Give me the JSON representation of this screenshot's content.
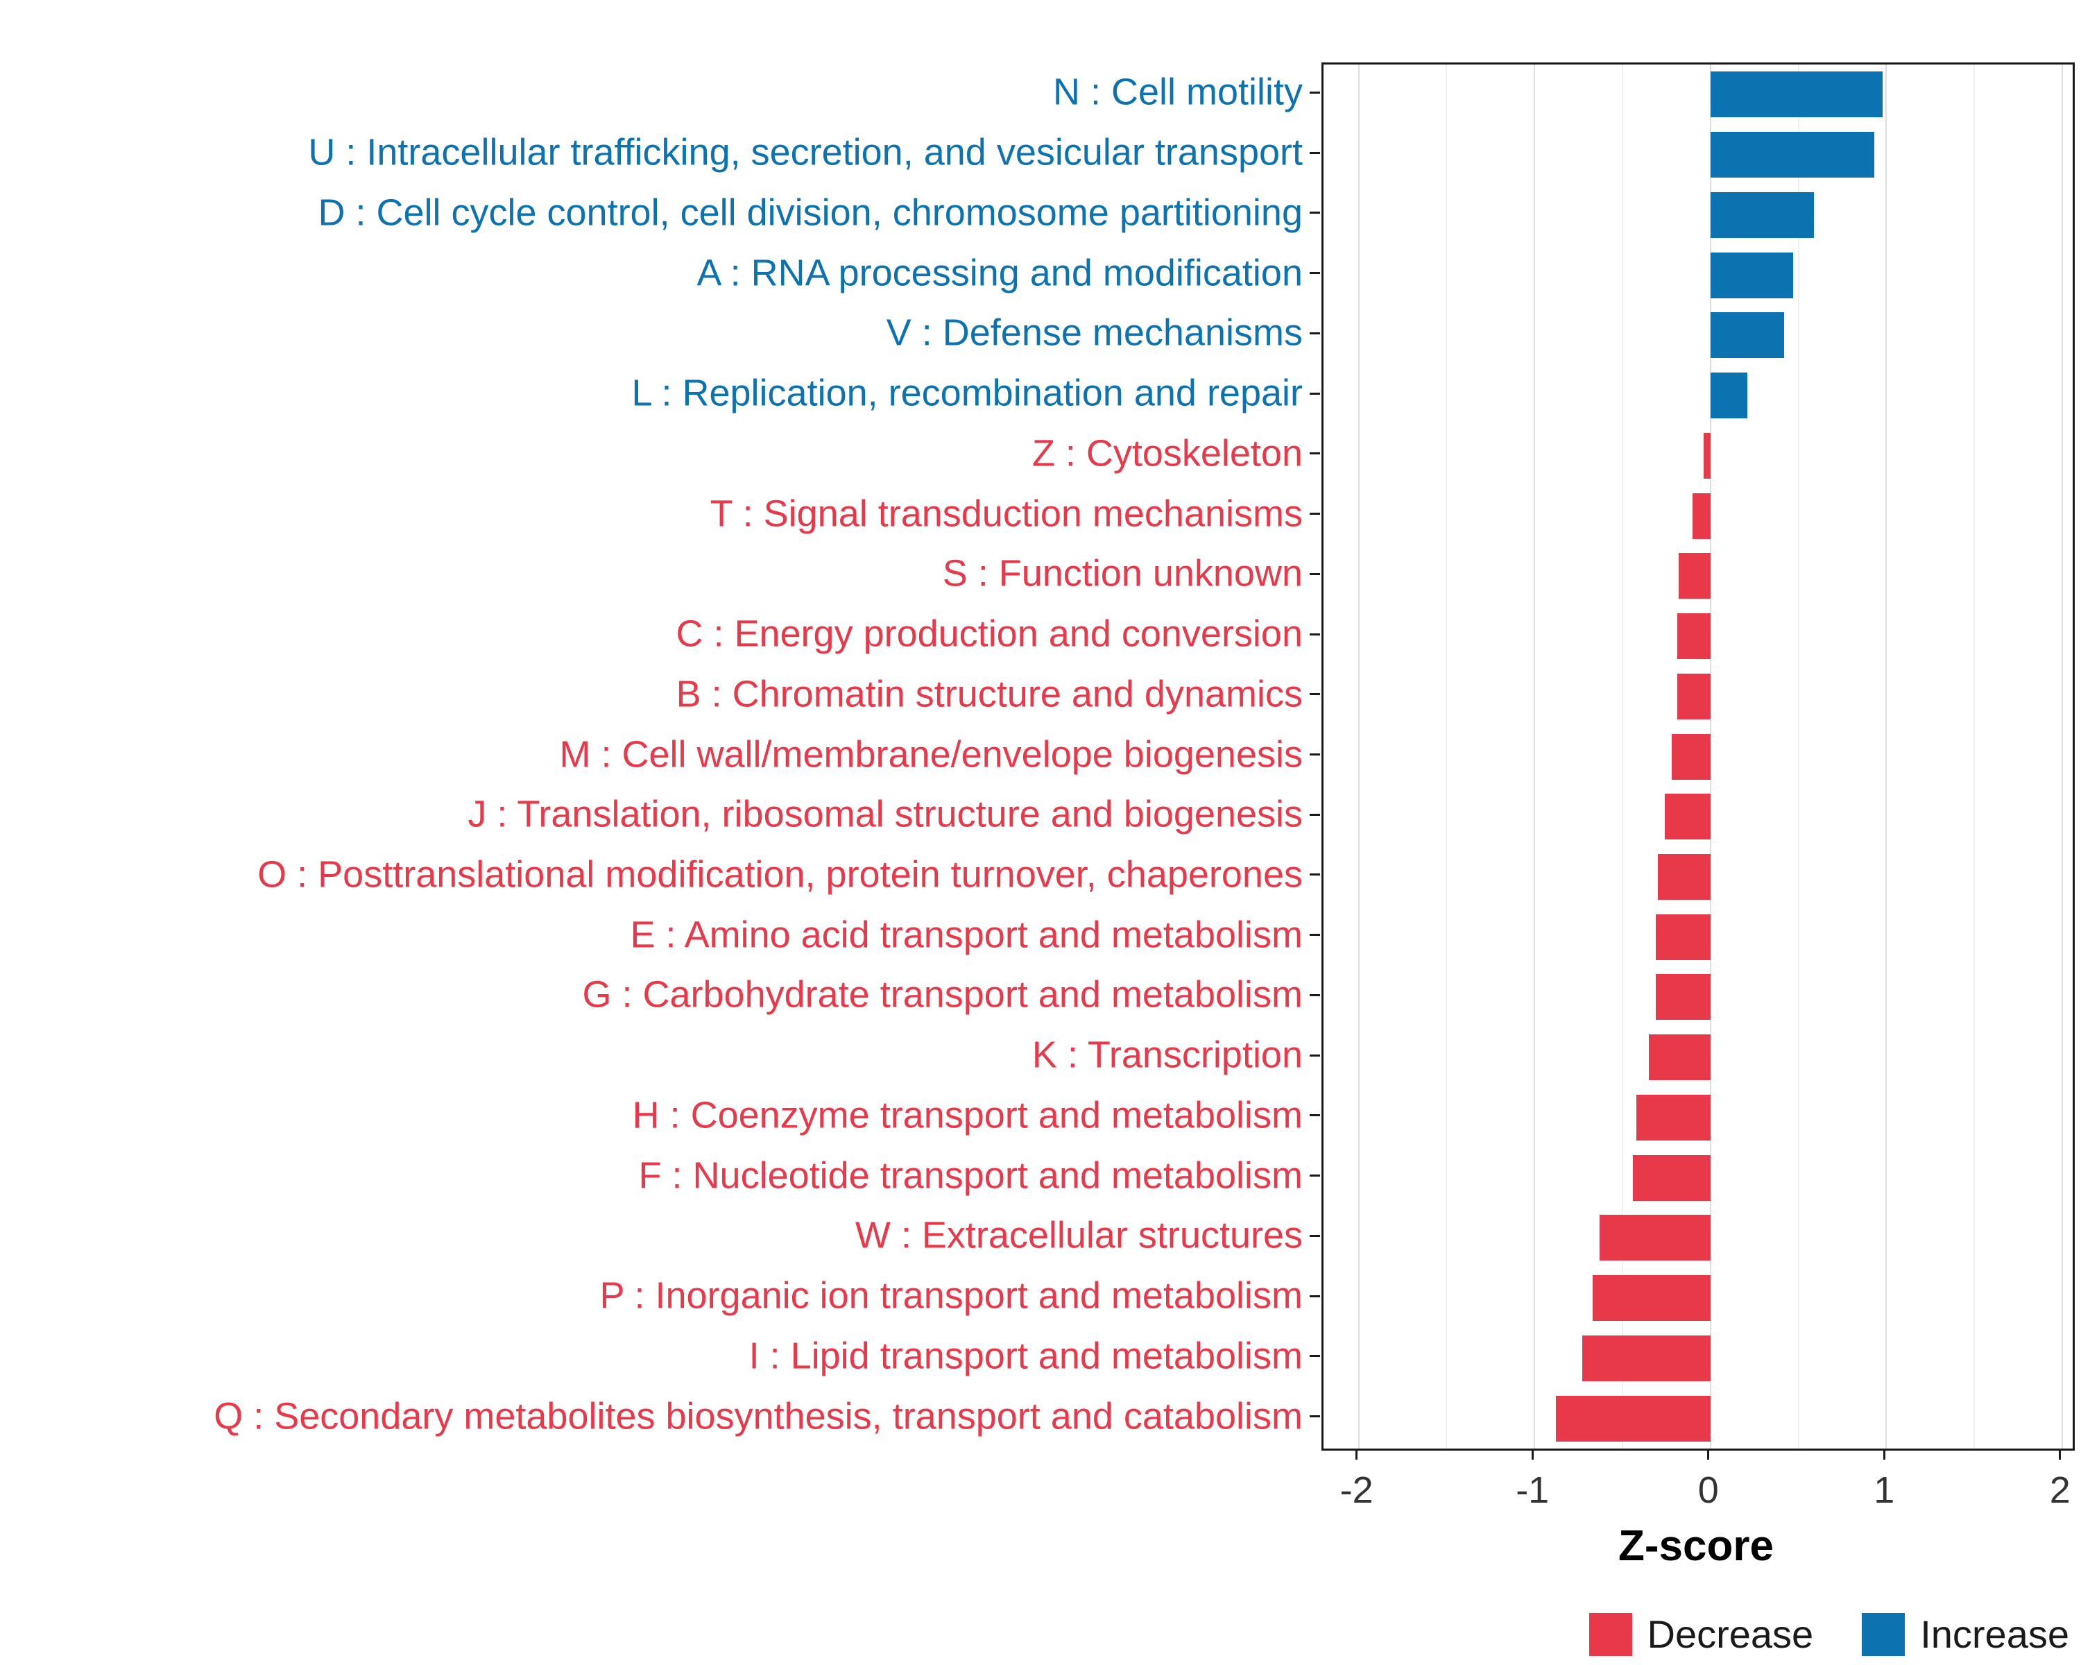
{
  "chart_data": {
    "type": "bar",
    "orientation": "horizontal",
    "title": "",
    "xlabel": "Z-score",
    "ylabel": "",
    "xlim": [
      -2.2,
      2.06
    ],
    "x_ticks": [
      -2,
      -1,
      0,
      1,
      2
    ],
    "x_minor_ticks": [
      -1.5,
      -0.5,
      0.5,
      1.5
    ],
    "grid": "vertical-major-and-minor",
    "legend_position": "bottom-right",
    "colors": {
      "increase": "#0c72b0",
      "decrease": "#e8394a"
    },
    "legend": [
      {
        "label": "Decrease",
        "direction": "Decrease",
        "color": "#e8394a"
      },
      {
        "label": "Increase",
        "direction": "Increase",
        "color": "#0c72b0"
      }
    ],
    "categories": [
      {
        "label": "N : Cell motility",
        "value": 0.98,
        "direction": "Increase"
      },
      {
        "label": "U : Intracellular trafficking, secretion, and vesicular transport",
        "value": 0.93,
        "direction": "Increase"
      },
      {
        "label": "D : Cell cycle control, cell division, chromosome partitioning",
        "value": 0.59,
        "direction": "Increase"
      },
      {
        "label": "A : RNA processing and modification",
        "value": 0.47,
        "direction": "Increase"
      },
      {
        "label": "V : Defense mechanisms",
        "value": 0.42,
        "direction": "Increase"
      },
      {
        "label": "L : Replication, recombination and repair",
        "value": 0.21,
        "direction": "Increase"
      },
      {
        "label": "Z : Cytoskeleton",
        "value": -0.04,
        "direction": "Decrease"
      },
      {
        "label": "T : Signal transduction mechanisms",
        "value": -0.1,
        "direction": "Decrease"
      },
      {
        "label": "S : Function unknown",
        "value": -0.18,
        "direction": "Decrease"
      },
      {
        "label": "C : Energy production and conversion",
        "value": -0.19,
        "direction": "Decrease"
      },
      {
        "label": "B : Chromatin structure and dynamics",
        "value": -0.19,
        "direction": "Decrease"
      },
      {
        "label": "M : Cell wall/membrane/envelope biogenesis",
        "value": -0.22,
        "direction": "Decrease"
      },
      {
        "label": "J : Translation, ribosomal structure and biogenesis",
        "value": -0.26,
        "direction": "Decrease"
      },
      {
        "label": "O : Posttranslational modification, protein turnover, chaperones",
        "value": -0.3,
        "direction": "Decrease"
      },
      {
        "label": "E : Amino acid transport and metabolism",
        "value": -0.31,
        "direction": "Decrease"
      },
      {
        "label": "G : Carbohydrate transport and metabolism",
        "value": -0.31,
        "direction": "Decrease"
      },
      {
        "label": "K : Transcription",
        "value": -0.35,
        "direction": "Decrease"
      },
      {
        "label": "H : Coenzyme transport and metabolism",
        "value": -0.42,
        "direction": "Decrease"
      },
      {
        "label": "F : Nucleotide transport and metabolism",
        "value": -0.44,
        "direction": "Decrease"
      },
      {
        "label": "W : Extracellular structures",
        "value": -0.63,
        "direction": "Decrease"
      },
      {
        "label": "P : Inorganic ion transport and metabolism",
        "value": -0.67,
        "direction": "Decrease"
      },
      {
        "label": "I : Lipid transport and metabolism",
        "value": -0.73,
        "direction": "Decrease"
      },
      {
        "label": "Q : Secondary metabolites biosynthesis, transport and catabolism",
        "value": -0.88,
        "direction": "Decrease"
      }
    ]
  }
}
